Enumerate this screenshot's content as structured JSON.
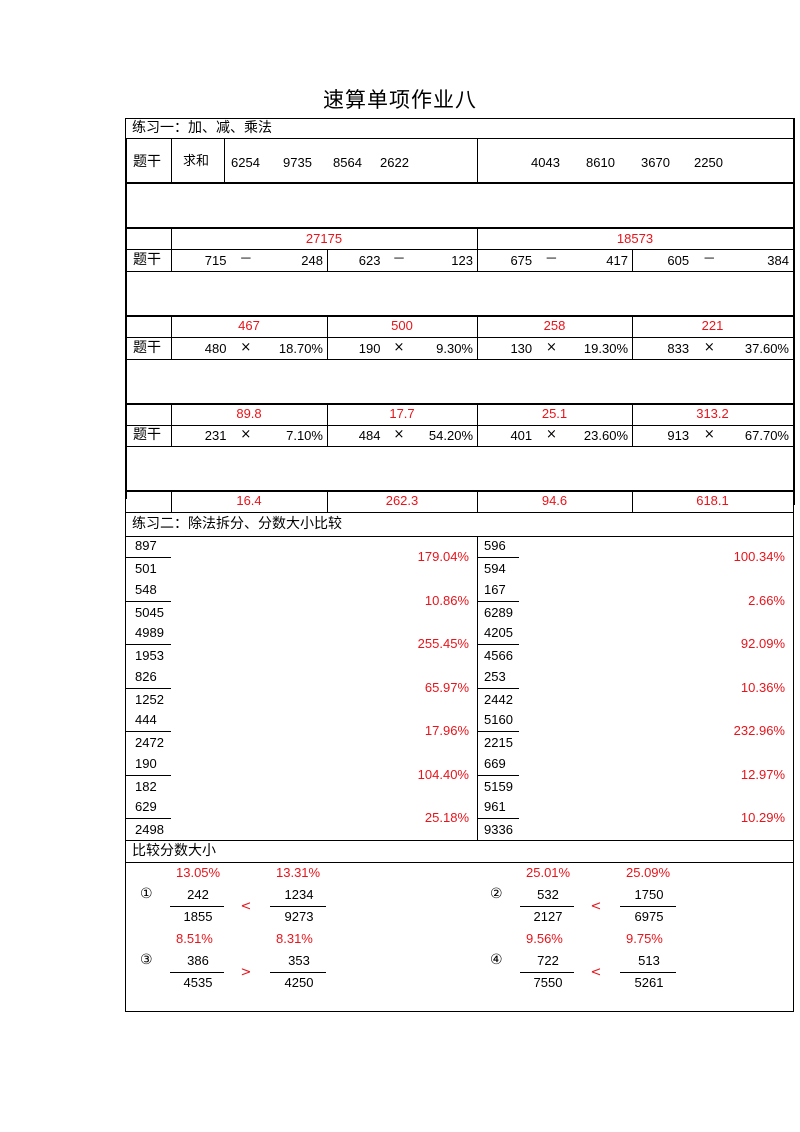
{
  "title": "速算单项作业八",
  "section1": {
    "title": "练习一：加、减、乘法",
    "label": "题干",
    "sum_label": "求和",
    "sum_left": [
      "6254",
      "9735",
      "8564",
      "2622"
    ],
    "sum_right": [
      "4043",
      "8610",
      "3670",
      "2250"
    ],
    "sum_answers": [
      "27175",
      "18573"
    ],
    "rows": [
      {
        "items": [
          {
            "a": "715",
            "op": "－",
            "b": "248"
          },
          {
            "a": "623",
            "op": "－",
            "b": "123"
          },
          {
            "a": "675",
            "op": "－",
            "b": "417"
          },
          {
            "a": "605",
            "op": "－",
            "b": "384"
          }
        ],
        "answers": [
          "467",
          "500",
          "258",
          "221"
        ]
      },
      {
        "items": [
          {
            "a": "480",
            "op": "×",
            "b": "18.70%"
          },
          {
            "a": "190",
            "op": "×",
            "b": "9.30%"
          },
          {
            "a": "130",
            "op": "×",
            "b": "19.30%"
          },
          {
            "a": "833",
            "op": "×",
            "b": "37.60%"
          }
        ],
        "answers": [
          "89.8",
          "17.7",
          "25.1",
          "313.2"
        ]
      },
      {
        "items": [
          {
            "a": "231",
            "op": "×",
            "b": "7.10%"
          },
          {
            "a": "484",
            "op": "×",
            "b": "54.20%"
          },
          {
            "a": "401",
            "op": "×",
            "b": "23.60%"
          },
          {
            "a": "913",
            "op": "×",
            "b": "67.70%"
          }
        ],
        "answers": [
          "16.4",
          "262.3",
          "94.6",
          "618.1"
        ]
      }
    ]
  },
  "section2": {
    "title": "练习二：除法拆分、分数大小比较",
    "left": [
      {
        "num": "897",
        "den": "501",
        "ans": "179.04%"
      },
      {
        "num": "548",
        "den": "5045",
        "ans": "10.86%"
      },
      {
        "num": "4989",
        "den": "1953",
        "ans": "255.45%"
      },
      {
        "num": "826",
        "den": "1252",
        "ans": "65.97%"
      },
      {
        "num": "444",
        "den": "2472",
        "ans": "17.96%"
      },
      {
        "num": "190",
        "den": "182",
        "ans": "104.40%"
      },
      {
        "num": "629",
        "den": "2498",
        "ans": "25.18%"
      }
    ],
    "right": [
      {
        "num": "596",
        "den": "594",
        "ans": "100.34%"
      },
      {
        "num": "167",
        "den": "6289",
        "ans": "2.66%"
      },
      {
        "num": "4205",
        "den": "4566",
        "ans": "92.09%"
      },
      {
        "num": "253",
        "den": "2442",
        "ans": "10.36%"
      },
      {
        "num": "5160",
        "den": "2215",
        "ans": "232.96%"
      },
      {
        "num": "669",
        "den": "5159",
        "ans": "12.97%"
      },
      {
        "num": "961",
        "den": "9336",
        "ans": "10.29%"
      }
    ]
  },
  "section3": {
    "title": "比较分数大小",
    "comparisons": [
      {
        "mark": "①",
        "pct1": "13.05%",
        "num1": "242",
        "den1": "1855",
        "sign": "<",
        "pct2": "13.31%",
        "num2": "1234",
        "den2": "9273"
      },
      {
        "mark": "②",
        "pct1": "25.01%",
        "num1": "532",
        "den1": "2127",
        "sign": "<",
        "pct2": "25.09%",
        "num2": "1750",
        "den2": "6975"
      },
      {
        "mark": "③",
        "pct1": "8.51%",
        "num1": "386",
        "den1": "4535",
        "sign": ">",
        "pct2": "8.31%",
        "num2": "353",
        "den2": "4250"
      },
      {
        "mark": "④",
        "pct1": "9.56%",
        "num1": "722",
        "den1": "7550",
        "sign": "<",
        "pct2": "9.75%",
        "num2": "513",
        "den2": "5261"
      }
    ]
  }
}
